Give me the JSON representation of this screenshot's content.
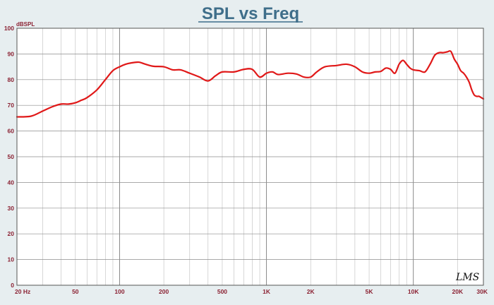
{
  "chart_data": {
    "type": "line",
    "title": "SPL vs Freq",
    "ylabel": "dBSPL",
    "xscale": "log",
    "xlim": [
      20,
      30000
    ],
    "ylim": [
      0,
      100
    ],
    "grid": true,
    "y_ticks": [
      "100",
      "90",
      "80",
      "70",
      "60",
      "50",
      "40",
      "30",
      "20",
      "10",
      "0"
    ],
    "x_ticks": [
      {
        "value": 20,
        "label": "20 Hz"
      },
      {
        "value": 50,
        "label": "50"
      },
      {
        "value": 100,
        "label": "100"
      },
      {
        "value": 200,
        "label": "200"
      },
      {
        "value": 500,
        "label": "500"
      },
      {
        "value": 1000,
        "label": "1K"
      },
      {
        "value": 2000,
        "label": "2K"
      },
      {
        "value": 5000,
        "label": "5K"
      },
      {
        "value": 10000,
        "label": "10K"
      },
      {
        "value": 20000,
        "label": "20K"
      },
      {
        "value": 30000,
        "label": "30K"
      }
    ],
    "series": [
      {
        "color": "#e01818",
        "x": [
          20,
          25,
          30,
          35,
          40,
          45,
          50,
          55,
          60,
          70,
          80,
          90,
          100,
          110,
          120,
          135,
          150,
          170,
          200,
          230,
          260,
          300,
          350,
          400,
          450,
          500,
          600,
          700,
          800,
          900,
          1000,
          1100,
          1200,
          1400,
          1600,
          1800,
          2000,
          2200,
          2500,
          3000,
          3500,
          4000,
          4500,
          5000,
          5500,
          6000,
          6500,
          7000,
          7500,
          8000,
          8500,
          9000,
          9500,
          10000,
          11000,
          12000,
          13000,
          14000,
          15000,
          16000,
          17000,
          18000,
          19000,
          20000,
          21000,
          22000,
          23000,
          24000,
          25000,
          26000,
          27000,
          28000,
          29000,
          30000
        ],
        "y": [
          65.5,
          65.8,
          67.8,
          69.5,
          70.5,
          70.5,
          71.0,
          72.0,
          73.0,
          76.0,
          80.0,
          83.5,
          85.0,
          86.0,
          86.5,
          86.8,
          86.0,
          85.2,
          85.0,
          83.8,
          83.8,
          82.5,
          81.0,
          79.5,
          81.5,
          83.0,
          83.0,
          84.0,
          84.0,
          81.0,
          82.5,
          83.0,
          82.0,
          82.5,
          82.2,
          81.0,
          81.0,
          83.0,
          85.0,
          85.5,
          86.0,
          85.0,
          83.0,
          82.5,
          83.0,
          83.2,
          84.5,
          84.0,
          82.5,
          86.0,
          87.5,
          86.0,
          84.5,
          83.8,
          83.5,
          83.0,
          86.0,
          89.5,
          90.5,
          90.5,
          90.8,
          91.0,
          88.0,
          86.0,
          83.5,
          82.5,
          81.0,
          79.0,
          76.0,
          74.0,
          73.5,
          73.5,
          73.0,
          72.5
        ]
      }
    ]
  },
  "watermark": "LMS"
}
